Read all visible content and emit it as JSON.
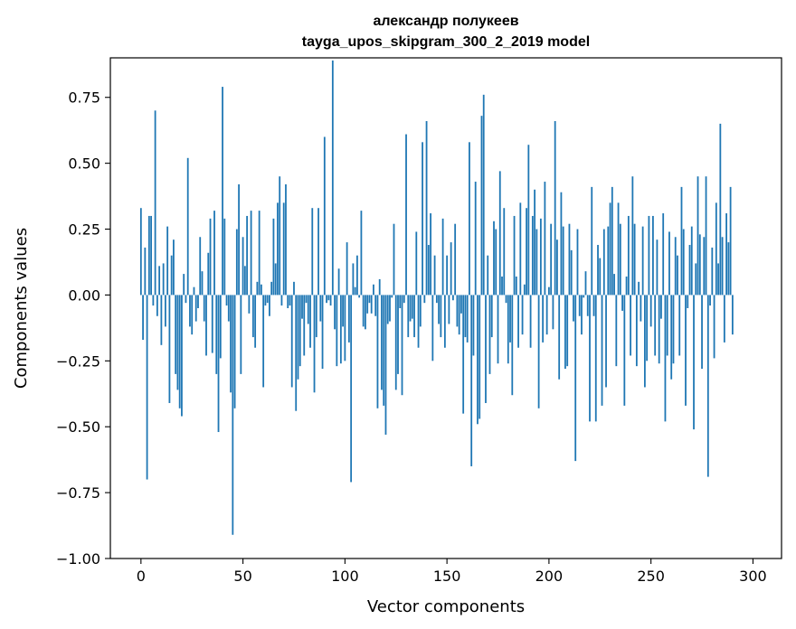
{
  "chart_data": {
    "type": "bar",
    "title": [
      "александр полукеев",
      "tayga_upos_skipgram_300_2_2019 model"
    ],
    "xlabel": "Vector components",
    "ylabel": "Components values",
    "xlim": [
      -15,
      314
    ],
    "ylim": [
      -1.0,
      0.9
    ],
    "xticks": [
      0,
      50,
      100,
      150,
      200,
      250,
      300
    ],
    "yticks": [
      -1.0,
      -0.75,
      -0.5,
      -0.25,
      0.0,
      0.25,
      0.5,
      0.75
    ],
    "ytick_labels": [
      "−1.00",
      "−0.75",
      "−0.50",
      "−0.25",
      "0.00",
      "0.25",
      "0.50",
      "0.75"
    ],
    "bar_color": "#1f77b4",
    "grid": false,
    "values": [
      0.33,
      -0.17,
      0.18,
      -0.7,
      0.3,
      0.3,
      -0.04,
      0.7,
      -0.08,
      0.11,
      -0.19,
      0.12,
      -0.12,
      0.26,
      -0.41,
      0.15,
      0.21,
      -0.3,
      -0.36,
      -0.43,
      -0.46,
      0.08,
      -0.03,
      0.52,
      -0.12,
      -0.15,
      0.03,
      -0.1,
      -0.05,
      0.22,
      0.09,
      -0.1,
      -0.23,
      0.16,
      0.29,
      -0.22,
      0.32,
      -0.3,
      -0.52,
      -0.24,
      0.79,
      0.29,
      -0.04,
      -0.1,
      -0.37,
      -0.91,
      -0.43,
      0.25,
      0.42,
      -0.3,
      0.22,
      0.11,
      0.3,
      -0.07,
      0.32,
      -0.16,
      -0.2,
      0.05,
      0.32,
      0.04,
      -0.35,
      -0.04,
      -0.03,
      -0.08,
      0.05,
      0.29,
      0.12,
      0.35,
      0.45,
      -0.04,
      0.35,
      0.42,
      -0.05,
      -0.04,
      -0.35,
      0.05,
      -0.44,
      -0.32,
      -0.27,
      -0.09,
      -0.23,
      -0.03,
      -0.11,
      -0.2,
      0.33,
      -0.37,
      -0.16,
      0.33,
      -0.1,
      -0.28,
      0.6,
      -0.03,
      -0.02,
      -0.04,
      0.89,
      -0.13,
      -0.27,
      0.1,
      -0.26,
      -0.12,
      -0.25,
      0.2,
      -0.18,
      -0.71,
      0.12,
      0.03,
      0.15,
      -0.01,
      0.32,
      -0.12,
      -0.13,
      -0.07,
      -0.03,
      -0.07,
      0.04,
      -0.08,
      -0.43,
      0.06,
      -0.36,
      -0.42,
      -0.53,
      -0.11,
      -0.1,
      -0.01,
      0.27,
      -0.36,
      -0.3,
      -0.05,
      -0.38,
      -0.03,
      0.61,
      -0.16,
      -0.1,
      -0.09,
      -0.16,
      0.24,
      -0.2,
      -0.12,
      0.58,
      -0.03,
      0.66,
      0.19,
      0.31,
      -0.25,
      0.15,
      -0.03,
      -0.11,
      -0.16,
      0.29,
      -0.2,
      0.15,
      -0.11,
      0.2,
      -0.02,
      0.27,
      -0.12,
      -0.15,
      -0.07,
      -0.45,
      -0.16,
      -0.18,
      0.58,
      -0.65,
      -0.23,
      0.43,
      -0.49,
      -0.47,
      0.68,
      0.76,
      -0.41,
      0.15,
      -0.3,
      -0.16,
      0.28,
      0.25,
      -0.26,
      0.47,
      0.07,
      0.33,
      -0.03,
      -0.26,
      -0.18,
      -0.38,
      0.3,
      0.07,
      -0.2,
      0.35,
      -0.15,
      0.04,
      0.33,
      0.57,
      -0.2,
      0.3,
      0.4,
      0.25,
      -0.43,
      0.29,
      -0.18,
      0.43,
      -0.15,
      0.03,
      0.27,
      -0.13,
      0.66,
      0.21,
      -0.32,
      0.39,
      0.26,
      -0.28,
      -0.27,
      0.27,
      0.17,
      -0.1,
      -0.63,
      0.25,
      -0.08,
      -0.15,
      -0.01,
      0.09,
      -0.08,
      -0.48,
      0.41,
      -0.08,
      -0.48,
      0.19,
      0.14,
      -0.42,
      0.25,
      -0.35,
      0.26,
      0.35,
      0.41,
      0.08,
      -0.27,
      0.35,
      0.27,
      -0.06,
      -0.42,
      0.07,
      0.3,
      -0.23,
      0.45,
      0.27,
      -0.27,
      0.05,
      -0.1,
      0.26,
      -0.35,
      -0.25,
      0.3,
      -0.12,
      0.3,
      -0.23,
      0.21,
      -0.26,
      -0.09,
      0.31,
      -0.48,
      -0.23,
      0.24,
      -0.32,
      -0.26,
      0.22,
      0.15,
      -0.23,
      0.41,
      0.25,
      -0.42,
      -0.05,
      0.19,
      0.26,
      -0.51,
      0.12,
      0.45,
      0.23,
      -0.28,
      0.22,
      0.45,
      -0.69,
      -0.04,
      0.18,
      -0.24,
      0.35,
      0.12,
      0.65,
      0.22,
      -0.18,
      0.31,
      0.2,
      0.41,
      -0.15
    ]
  }
}
